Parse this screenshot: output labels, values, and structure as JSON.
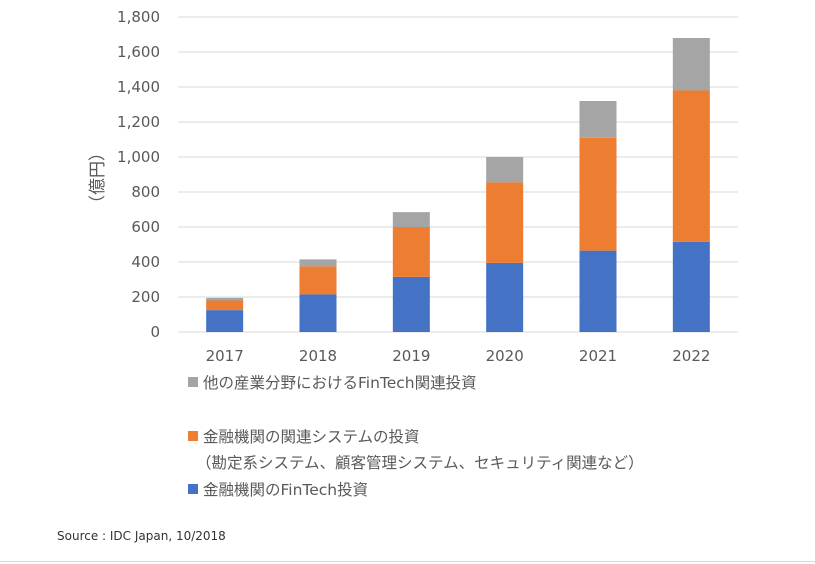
{
  "chart_data": {
    "type": "bar",
    "stacked": true,
    "categories": [
      "2017",
      "2018",
      "2019",
      "2020",
      "2021",
      "2022"
    ],
    "ylabel": "（億円）",
    "ylim": [
      0,
      1800
    ],
    "yticks": [
      "0",
      "200",
      "400",
      "600",
      "800",
      "1,000",
      "1,200",
      "1,400",
      "1,600",
      "1,800"
    ],
    "ytick_values": [
      0,
      200,
      400,
      600,
      800,
      1000,
      1200,
      1400,
      1600,
      1800
    ],
    "grid": true,
    "series": [
      {
        "name": "金融機関のFinTech投資",
        "color": "#4472c4",
        "values": [
          125,
          215,
          315,
          395,
          465,
          515
        ]
      },
      {
        "name": "金融機関の関連システムの投資",
        "color": "#ed7d31",
        "values": [
          55,
          160,
          285,
          460,
          645,
          865
        ]
      },
      {
        "name": "他の産業分野におけるFinTech関連投資",
        "color": "#a5a5a5",
        "values": [
          15,
          40,
          85,
          145,
          210,
          300
        ]
      }
    ]
  },
  "legend": {
    "other": "他の産業分野におけるFinTech関連投資",
    "systems": "金融機関の関連システムの投資",
    "systems_sub": "（勘定系システム、顧客管理システム、セキュリティ関連など）",
    "fintech": "金融機関のFinTech投資"
  },
  "source": "Source : IDC Japan, 10/2018"
}
